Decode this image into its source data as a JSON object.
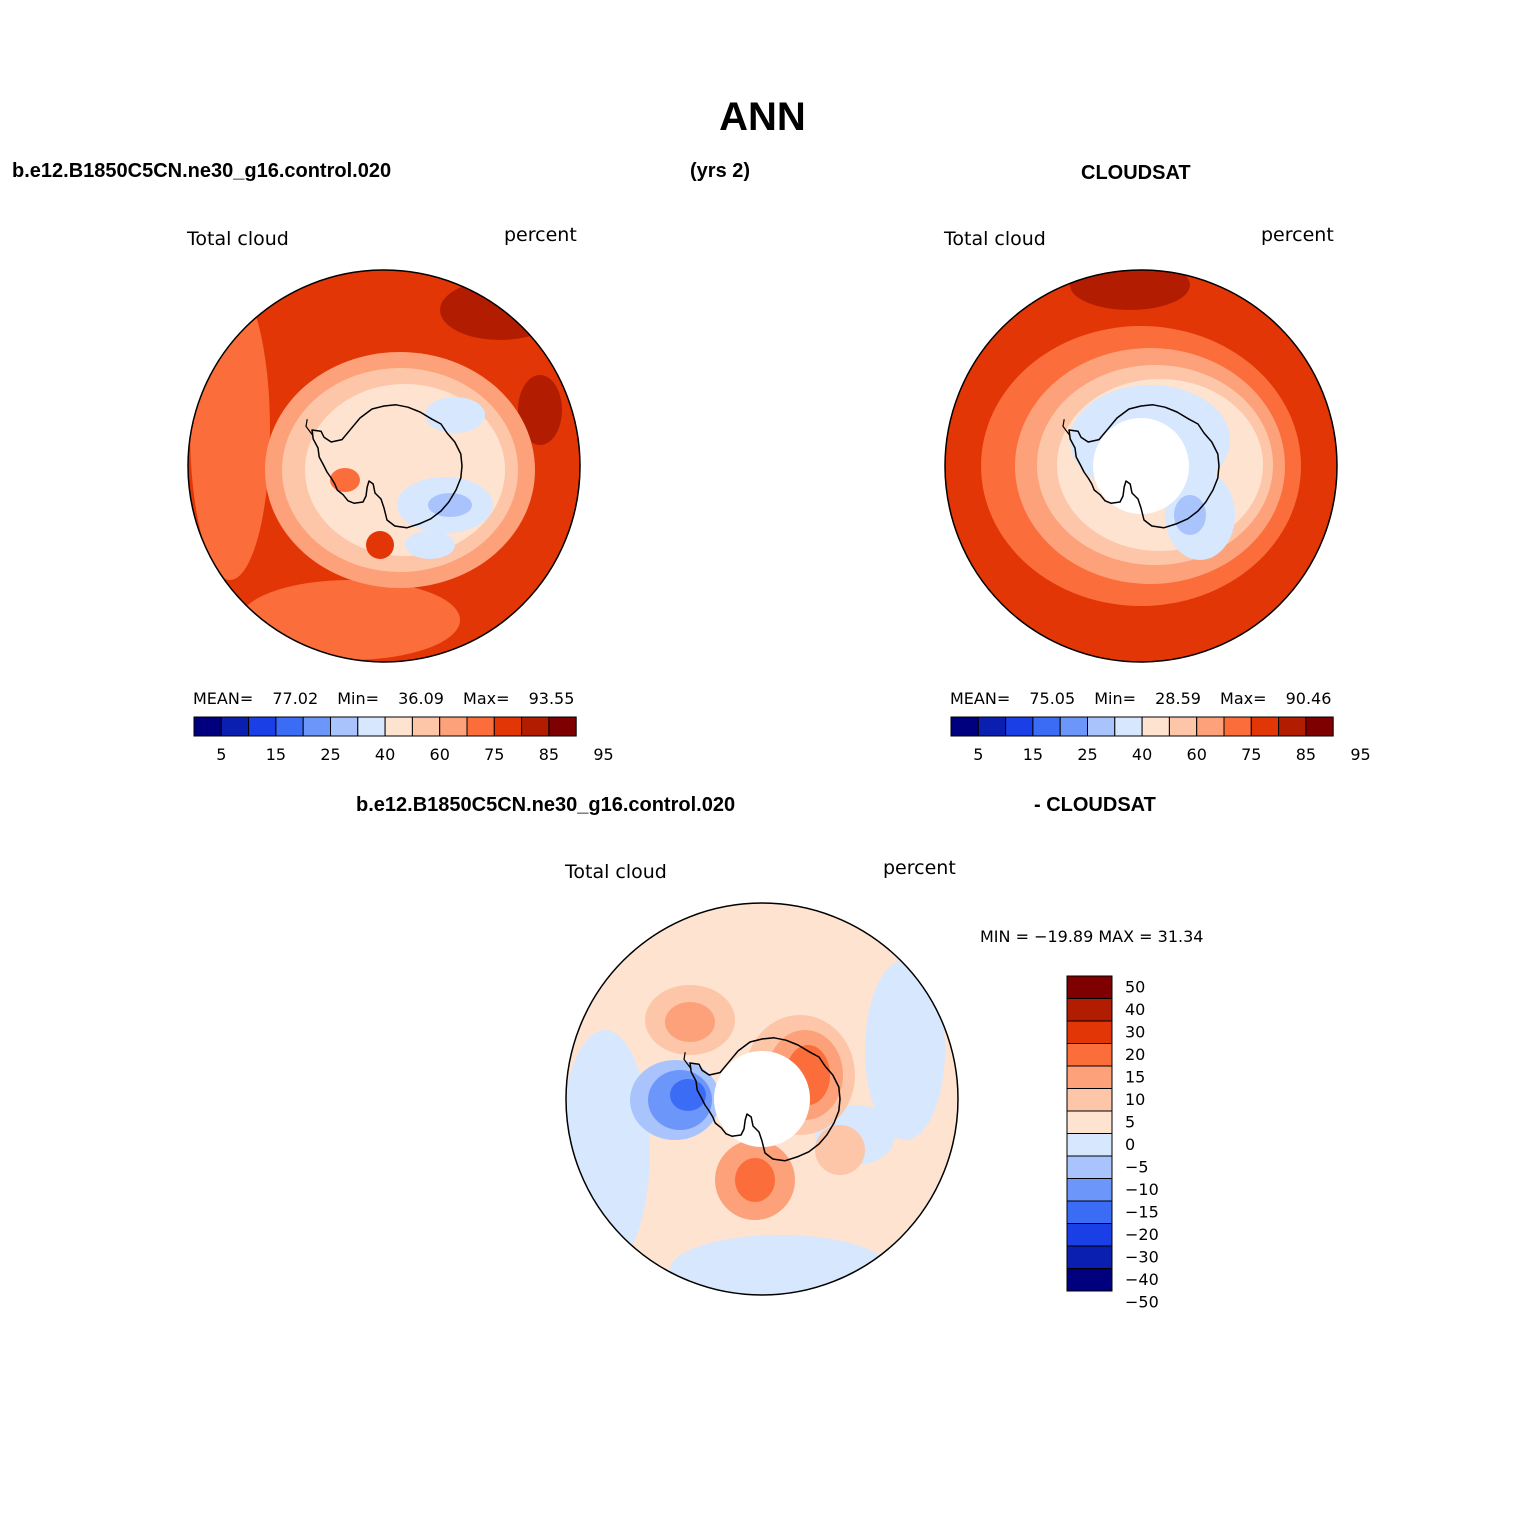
{
  "figure": {
    "title": "ANN",
    "top_left_case": "b.e12.B1850C5CN.ne30_g16.control.020",
    "years": "(yrs 2)",
    "top_right_case": "CLOUDSAT",
    "diff_case_left": "b.e12.B1850C5CN.ne30_g16.control.020",
    "diff_case_right": "- CLOUDSAT"
  },
  "panels": [
    {
      "id": "model",
      "variable": "Total cloud",
      "units": "percent",
      "stats": {
        "mean_label": "MEAN=",
        "mean": "77.02",
        "min_label": "Min=",
        "min": "36.09",
        "max_label": "Max=",
        "max": "93.55"
      }
    },
    {
      "id": "obs",
      "variable": "Total cloud",
      "units": "percent",
      "stats": {
        "mean_label": "MEAN=",
        "mean": "75.05",
        "min_label": "Min=",
        "min": "28.59",
        "max_label": "Max=",
        "max": "90.46"
      }
    },
    {
      "id": "diff",
      "variable": "Total cloud",
      "units": "percent",
      "stats_text": "MIN = −19.89 MAX =  31.34"
    }
  ],
  "colorbars": {
    "abs_colors": [
      "#00007f",
      "#0a1fb0",
      "#1a3fe6",
      "#3a6cf5",
      "#6d96fb",
      "#a9c4fd",
      "#d6e7fe",
      "#fee3d1",
      "#fdc6a8",
      "#fca179",
      "#fb6d3a",
      "#e23607",
      "#b21d02",
      "#7f0000"
    ],
    "abs_labels": [
      "5",
      "15",
      "25",
      "40",
      "60",
      "75",
      "85",
      "95"
    ],
    "diff_colors": [
      "#00007f",
      "#0a1fb0",
      "#1a3fe6",
      "#3a6cf5",
      "#6d96fb",
      "#a9c4fd",
      "#d6e7fe",
      "#fee3d1",
      "#fdc6a8",
      "#fca179",
      "#fb6d3a",
      "#e23607",
      "#b21d02",
      "#7f0000"
    ],
    "diff_labels": [
      "−50",
      "−40",
      "−30",
      "−20",
      "−15",
      "−10",
      "−5",
      "0",
      "5",
      "10",
      "15",
      "20",
      "30",
      "40",
      "50"
    ]
  }
}
